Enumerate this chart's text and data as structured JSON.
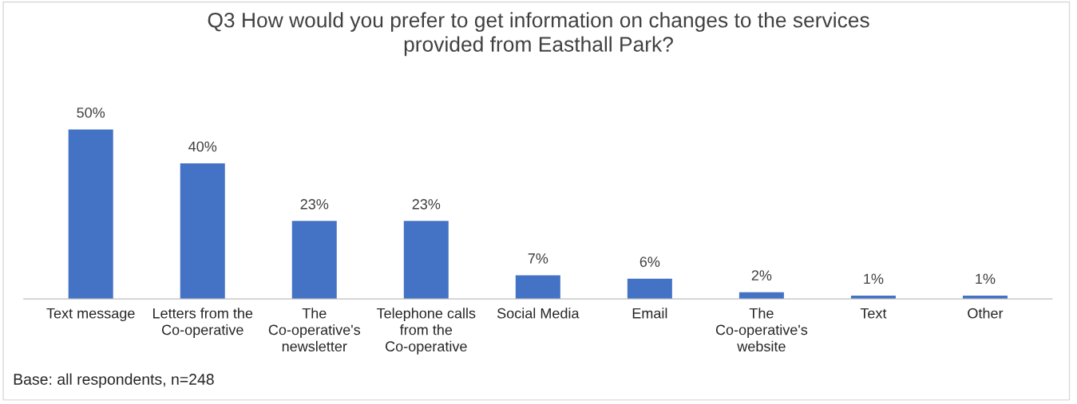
{
  "chart_data": {
    "type": "bar",
    "title": "Q3 How would you prefer to get information on changes to the services provided from Easthall Park?",
    "categories": [
      "Text message",
      "Letters from the Co-operative",
      "The Co-operative's newsletter",
      "Telephone calls from the Co-operative",
      "Social Media",
      "Email",
      "The Co-operative's website",
      "Text",
      "Other"
    ],
    "values": [
      50,
      40,
      23,
      23,
      7,
      6,
      2,
      1,
      1
    ],
    "color": "#4472c4",
    "value_labels": [
      "50%",
      "40%",
      "23%",
      "23%",
      "7%",
      "6%",
      "2%",
      "1%",
      "1%"
    ],
    "tick_labels": "x",
    "grid": false,
    "legend": false,
    "annotations": [
      "Base: all respondents, n=248"
    ]
  }
}
